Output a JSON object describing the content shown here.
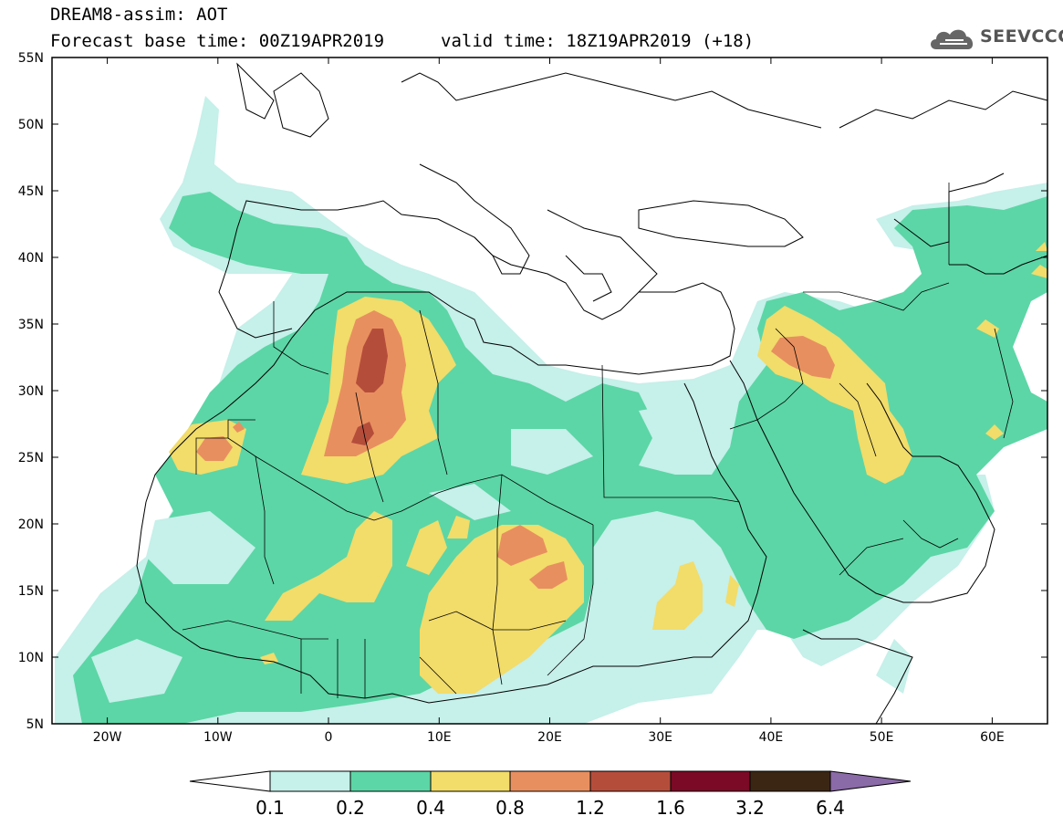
{
  "header": {
    "product": "DREAM8-assim: AOT",
    "base_time": "Forecast base time: 00Z19APR2019",
    "valid_time": "valid time: 18Z19APR2019 (+18)"
  },
  "logo": {
    "text": "SEEVCCC",
    "icon": "cloud-icon"
  },
  "map": {
    "lon_range": [
      -25,
      65
    ],
    "lat_range": [
      5,
      55
    ],
    "x_ticks": [
      "20W",
      "10W",
      "0",
      "10E",
      "20E",
      "30E",
      "40E",
      "50E",
      "60E"
    ],
    "y_ticks": [
      "55N",
      "50N",
      "45N",
      "40N",
      "35N",
      "30N",
      "25N",
      "20N",
      "15N",
      "10N",
      "5N"
    ]
  },
  "colorbar": {
    "labels": [
      "0.1",
      "0.2",
      "0.4",
      "0.8",
      "1.2",
      "1.6",
      "3.2",
      "6.4"
    ],
    "colors": [
      "#c6f0ea",
      "#5cd6a6",
      "#f2dc6a",
      "#e88f5f",
      "#b54d3b",
      "#7a0a26",
      "#3b2614",
      "#8b6aa8"
    ],
    "under_color": "#ffffff"
  },
  "colors": {
    "c01": "#c6f0ea",
    "c02": "#5cd6a6",
    "c04": "#f2dc6a",
    "c08": "#e88f5f",
    "c12": "#b54d3b",
    "border": "#000000"
  }
}
